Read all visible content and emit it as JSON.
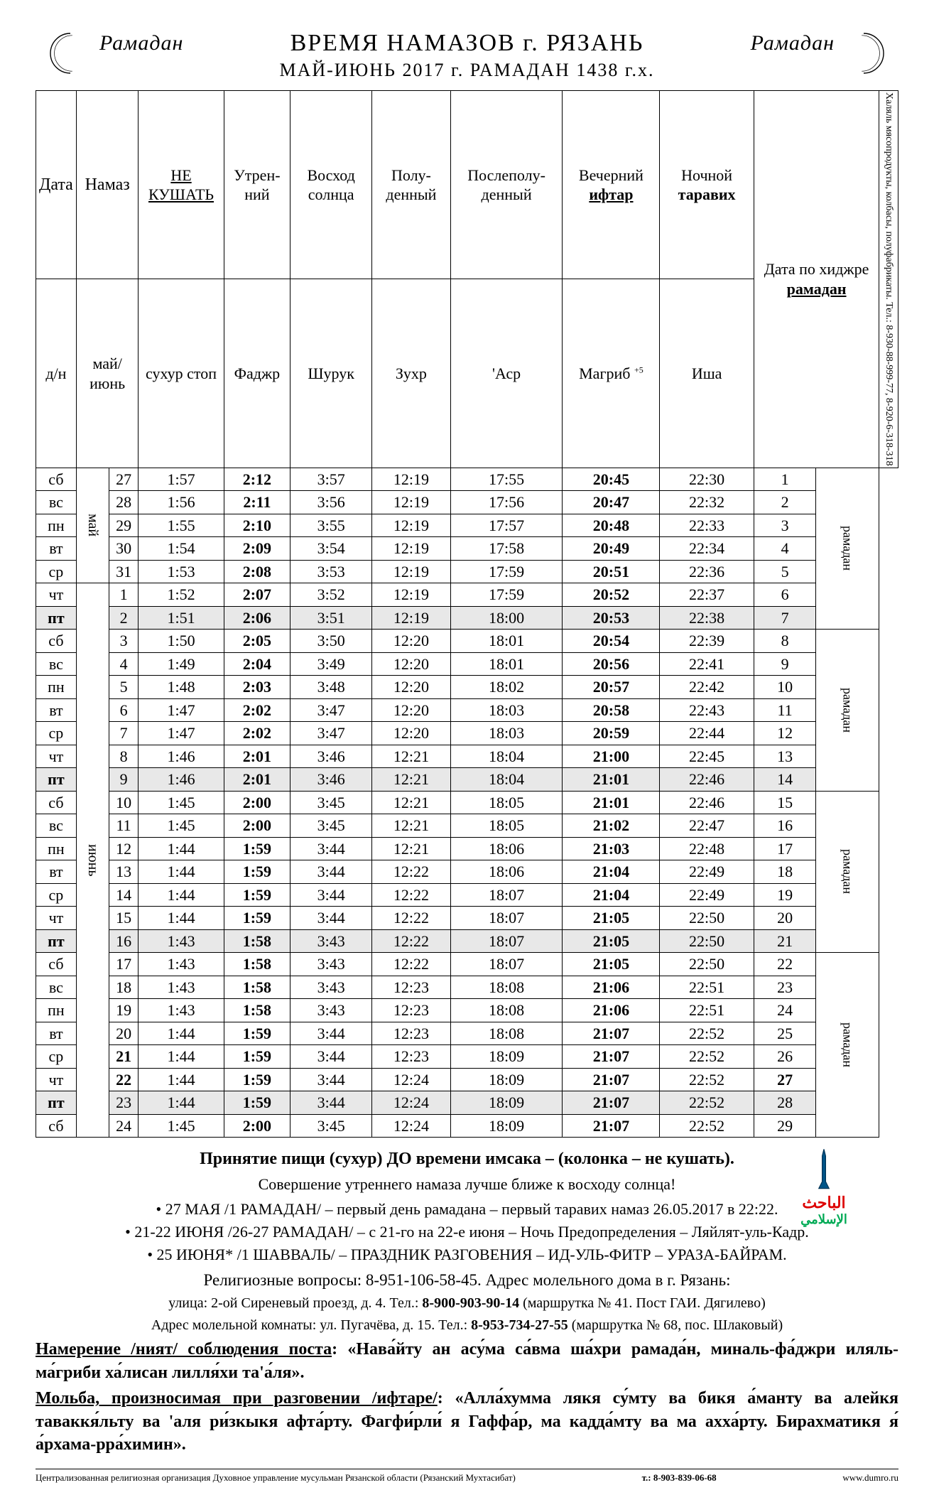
{
  "header": {
    "ramadan_left": "Рамадан",
    "ramadan_right": "Рамадан",
    "title_main": "ВРЕМЯ НАМАЗОВ г. РЯЗАНЬ",
    "subtitle": "МАЙ-ИЮНЬ 2017 г.   РАМАДАН 1438 г.х."
  },
  "table": {
    "h_date": "Дата",
    "h_namaz": "Намаз",
    "h_nokushat": "НЕ КУШАТЬ",
    "h_utr": "Утрен-ний",
    "h_voskhod": "Восход солнца",
    "h_polu": "Полу-денный",
    "h_poslepolu": "Послеполу-денный",
    "h_vech": "Вечерний ифтар",
    "h_noch": "Ночной таравих",
    "h_hijri": "Дата по хиджре рамадан",
    "h_dn": "д/н",
    "h_month": "май/июнь",
    "h_suhur": "сухур стоп",
    "h_fajr": "Фаджр",
    "h_shuruk": "Шурук",
    "h_zuhr": "Зухр",
    "h_asr": "'Аср",
    "h_magrib": "Магриб",
    "h_magrib_sup": "+5",
    "h_isha": "Иша",
    "month_may": "май",
    "month_june": "июнь",
    "ramadan_vert": "рамадан",
    "side_ad": "Халяль мясопродукты, колбасы, полуфабрикаты. Тел.: 8-930-88-999-77, 8-920-6-318-318",
    "rows": [
      {
        "dn": "сб",
        "day": "27",
        "suhur": "1:57",
        "fajr": "2:12",
        "shuruk": "3:57",
        "zuhr": "12:19",
        "asr": "17:55",
        "magrib": "20:45",
        "isha": "22:30",
        "h": "1",
        "shade": false,
        "boldDay": false,
        "boldH": false
      },
      {
        "dn": "вс",
        "day": "28",
        "suhur": "1:56",
        "fajr": "2:11",
        "shuruk": "3:56",
        "zuhr": "12:19",
        "asr": "17:56",
        "magrib": "20:47",
        "isha": "22:32",
        "h": "2",
        "shade": false,
        "boldDay": false,
        "boldH": false
      },
      {
        "dn": "пн",
        "day": "29",
        "suhur": "1:55",
        "fajr": "2:10",
        "shuruk": "3:55",
        "zuhr": "12:19",
        "asr": "17:57",
        "magrib": "20:48",
        "isha": "22:33",
        "h": "3",
        "shade": false,
        "boldDay": false,
        "boldH": false
      },
      {
        "dn": "вт",
        "day": "30",
        "suhur": "1:54",
        "fajr": "2:09",
        "shuruk": "3:54",
        "zuhr": "12:19",
        "asr": "17:58",
        "magrib": "20:49",
        "isha": "22:34",
        "h": "4",
        "shade": false,
        "boldDay": false,
        "boldH": false
      },
      {
        "dn": "ср",
        "day": "31",
        "suhur": "1:53",
        "fajr": "2:08",
        "shuruk": "3:53",
        "zuhr": "12:19",
        "asr": "17:59",
        "magrib": "20:51",
        "isha": "22:36",
        "h": "5",
        "shade": false,
        "boldDay": false,
        "boldH": false
      },
      {
        "dn": "чт",
        "day": "1",
        "suhur": "1:52",
        "fajr": "2:07",
        "shuruk": "3:52",
        "zuhr": "12:19",
        "asr": "17:59",
        "magrib": "20:52",
        "isha": "22:37",
        "h": "6",
        "shade": false,
        "boldDay": false,
        "boldH": false
      },
      {
        "dn": "пт",
        "day": "2",
        "suhur": "1:51",
        "fajr": "2:06",
        "shuruk": "3:51",
        "zuhr": "12:19",
        "asr": "18:00",
        "magrib": "20:53",
        "isha": "22:38",
        "h": "7",
        "shade": true,
        "boldDay": false,
        "boldH": false
      },
      {
        "dn": "сб",
        "day": "3",
        "suhur": "1:50",
        "fajr": "2:05",
        "shuruk": "3:50",
        "zuhr": "12:20",
        "asr": "18:01",
        "magrib": "20:54",
        "isha": "22:39",
        "h": "8",
        "shade": false,
        "boldDay": false,
        "boldH": false
      },
      {
        "dn": "вс",
        "day": "4",
        "suhur": "1:49",
        "fajr": "2:04",
        "shuruk": "3:49",
        "zuhr": "12:20",
        "asr": "18:01",
        "magrib": "20:56",
        "isha": "22:41",
        "h": "9",
        "shade": false,
        "boldDay": false,
        "boldH": false
      },
      {
        "dn": "пн",
        "day": "5",
        "suhur": "1:48",
        "fajr": "2:03",
        "shuruk": "3:48",
        "zuhr": "12:20",
        "asr": "18:02",
        "magrib": "20:57",
        "isha": "22:42",
        "h": "10",
        "shade": false,
        "boldDay": false,
        "boldH": false
      },
      {
        "dn": "вт",
        "day": "6",
        "suhur": "1:47",
        "fajr": "2:02",
        "shuruk": "3:47",
        "zuhr": "12:20",
        "asr": "18:03",
        "magrib": "20:58",
        "isha": "22:43",
        "h": "11",
        "shade": false,
        "boldDay": false,
        "boldH": false
      },
      {
        "dn": "ср",
        "day": "7",
        "suhur": "1:47",
        "fajr": "2:02",
        "shuruk": "3:47",
        "zuhr": "12:20",
        "asr": "18:03",
        "magrib": "20:59",
        "isha": "22:44",
        "h": "12",
        "shade": false,
        "boldDay": false,
        "boldH": false
      },
      {
        "dn": "чт",
        "day": "8",
        "suhur": "1:46",
        "fajr": "2:01",
        "shuruk": "3:46",
        "zuhr": "12:21",
        "asr": "18:04",
        "magrib": "21:00",
        "isha": "22:45",
        "h": "13",
        "shade": false,
        "boldDay": false,
        "boldH": false
      },
      {
        "dn": "пт",
        "day": "9",
        "suhur": "1:46",
        "fajr": "2:01",
        "shuruk": "3:46",
        "zuhr": "12:21",
        "asr": "18:04",
        "magrib": "21:01",
        "isha": "22:46",
        "h": "14",
        "shade": true,
        "boldDay": false,
        "boldH": false
      },
      {
        "dn": "сб",
        "day": "10",
        "suhur": "1:45",
        "fajr": "2:00",
        "shuruk": "3:45",
        "zuhr": "12:21",
        "asr": "18:05",
        "magrib": "21:01",
        "isha": "22:46",
        "h": "15",
        "shade": false,
        "boldDay": false,
        "boldH": false
      },
      {
        "dn": "вс",
        "day": "11",
        "suhur": "1:45",
        "fajr": "2:00",
        "shuruk": "3:45",
        "zuhr": "12:21",
        "asr": "18:05",
        "magrib": "21:02",
        "isha": "22:47",
        "h": "16",
        "shade": false,
        "boldDay": false,
        "boldH": false
      },
      {
        "dn": "пн",
        "day": "12",
        "suhur": "1:44",
        "fajr": "1:59",
        "shuruk": "3:44",
        "zuhr": "12:21",
        "asr": "18:06",
        "magrib": "21:03",
        "isha": "22:48",
        "h": "17",
        "shade": false,
        "boldDay": false,
        "boldH": false
      },
      {
        "dn": "вт",
        "day": "13",
        "suhur": "1:44",
        "fajr": "1:59",
        "shuruk": "3:44",
        "zuhr": "12:22",
        "asr": "18:06",
        "magrib": "21:04",
        "isha": "22:49",
        "h": "18",
        "shade": false,
        "boldDay": false,
        "boldH": false
      },
      {
        "dn": "ср",
        "day": "14",
        "suhur": "1:44",
        "fajr": "1:59",
        "shuruk": "3:44",
        "zuhr": "12:22",
        "asr": "18:07",
        "magrib": "21:04",
        "isha": "22:49",
        "h": "19",
        "shade": false,
        "boldDay": false,
        "boldH": false
      },
      {
        "dn": "чт",
        "day": "15",
        "suhur": "1:44",
        "fajr": "1:59",
        "shuruk": "3:44",
        "zuhr": "12:22",
        "asr": "18:07",
        "magrib": "21:05",
        "isha": "22:50",
        "h": "20",
        "shade": false,
        "boldDay": false,
        "boldH": false
      },
      {
        "dn": "пт",
        "day": "16",
        "suhur": "1:43",
        "fajr": "1:58",
        "shuruk": "3:43",
        "zuhr": "12:22",
        "asr": "18:07",
        "magrib": "21:05",
        "isha": "22:50",
        "h": "21",
        "shade": true,
        "boldDay": false,
        "boldH": false
      },
      {
        "dn": "сб",
        "day": "17",
        "suhur": "1:43",
        "fajr": "1:58",
        "shuruk": "3:43",
        "zuhr": "12:22",
        "asr": "18:07",
        "magrib": "21:05",
        "isha": "22:50",
        "h": "22",
        "shade": false,
        "boldDay": false,
        "boldH": false
      },
      {
        "dn": "вс",
        "day": "18",
        "suhur": "1:43",
        "fajr": "1:58",
        "shuruk": "3:43",
        "zuhr": "12:23",
        "asr": "18:08",
        "magrib": "21:06",
        "isha": "22:51",
        "h": "23",
        "shade": false,
        "boldDay": false,
        "boldH": false
      },
      {
        "dn": "пн",
        "day": "19",
        "suhur": "1:43",
        "fajr": "1:58",
        "shuruk": "3:43",
        "zuhr": "12:23",
        "asr": "18:08",
        "magrib": "21:06",
        "isha": "22:51",
        "h": "24",
        "shade": false,
        "boldDay": false,
        "boldH": false
      },
      {
        "dn": "вт",
        "day": "20",
        "suhur": "1:44",
        "fajr": "1:59",
        "shuruk": "3:44",
        "zuhr": "12:23",
        "asr": "18:08",
        "magrib": "21:07",
        "isha": "22:52",
        "h": "25",
        "shade": false,
        "boldDay": false,
        "boldH": false
      },
      {
        "dn": "ср",
        "day": "21",
        "suhur": "1:44",
        "fajr": "1:59",
        "shuruk": "3:44",
        "zuhr": "12:23",
        "asr": "18:09",
        "magrib": "21:07",
        "isha": "22:52",
        "h": "26",
        "shade": false,
        "boldDay": true,
        "boldH": false
      },
      {
        "dn": "чт",
        "day": "22",
        "suhur": "1:44",
        "fajr": "1:59",
        "shuruk": "3:44",
        "zuhr": "12:24",
        "asr": "18:09",
        "magrib": "21:07",
        "isha": "22:52",
        "h": "27",
        "shade": false,
        "boldDay": true,
        "boldH": true
      },
      {
        "dn": "пт",
        "day": "23",
        "suhur": "1:44",
        "fajr": "1:59",
        "shuruk": "3:44",
        "zuhr": "12:24",
        "asr": "18:09",
        "magrib": "21:07",
        "isha": "22:52",
        "h": "28",
        "shade": true,
        "boldDay": false,
        "boldH": false
      },
      {
        "dn": "сб",
        "day": "24",
        "suhur": "1:45",
        "fajr": "2:00",
        "shuruk": "3:45",
        "zuhr": "12:24",
        "asr": "18:09",
        "magrib": "21:07",
        "isha": "22:52",
        "h": "29",
        "shade": false,
        "boldDay": false,
        "boldH": false
      }
    ]
  },
  "notes": {
    "line1": "Принятие пищи (сухур) ДО времени имсака – (колонка – не кушать).",
    "line2": "Совершение утреннего намаза лучше ближе к восходу солнца!",
    "bullets": [
      "27 МАЯ /1 РАМАДАН/ – первый день рамадана – первый таравих намаз 26.05.2017 в 22:22.",
      "21-22 ИЮНЯ /26-27 РАМАДАН/ – с 21-го на 22-е июня – Ночь Предопределения – Ляйлят-уль-Кадр.",
      "25 ИЮНЯ* /1 ШАВВАЛЬ/ – ПРАЗДНИК РАЗГОВЕНИЯ – ИД-УЛЬ-ФИТР – УРАЗА-БАЙРАМ."
    ],
    "relq": "Религиозные вопросы: 8-951-106-58-45. Адрес молельного дома в г. Рязань:",
    "addr1a": "улица: 2-ой Сиреневый проезд, д. 4. Тел.: ",
    "addr1b": "8-900-903-90-14",
    "addr1c": "  (маршрутка № 41. Пост ГАИ. Дягилево)",
    "addr2a": "Адрес молельной комнаты: ул. Пугачёва, д. 15. Тел.: ",
    "addr2b": "8-953-734-27-55",
    "addr2c": " (маршрутка № 68, пос. Шлаковый)",
    "niyat_label": "Намерение /ният/ соблюдения поста",
    "niyat_text": ": «Нава́йту ан асу́ма са́вма ша́хри рамада́н, миналь-фа́джри иляль-ма́гриби ха́лисан лилля́хи та'а́ля».",
    "dua_label": "Мольба, произносимая при разговении /ифтаре/",
    "dua_text": ": «Алла́хумма лякя су́мту ва бикя а́манту ва алейкя таваккя́льту ва 'аля ри́зкыкя афта́рту. Фагфи́рли́ я Гаффа́р, ма кадда́мту ва ма ахха́рту. Бирахматикя я́ а́рхама-рра́химин».",
    "logo1": "الباحث",
    "logo2": "الإسلامي"
  },
  "footer": {
    "left": "Централизованная религиозная организация Духовное управление мусульман Рязанской области (Рязанский Мухтасибат)",
    "mid": "т.: 8-903-839-06-68",
    "right": "www.dumro.ru"
  }
}
